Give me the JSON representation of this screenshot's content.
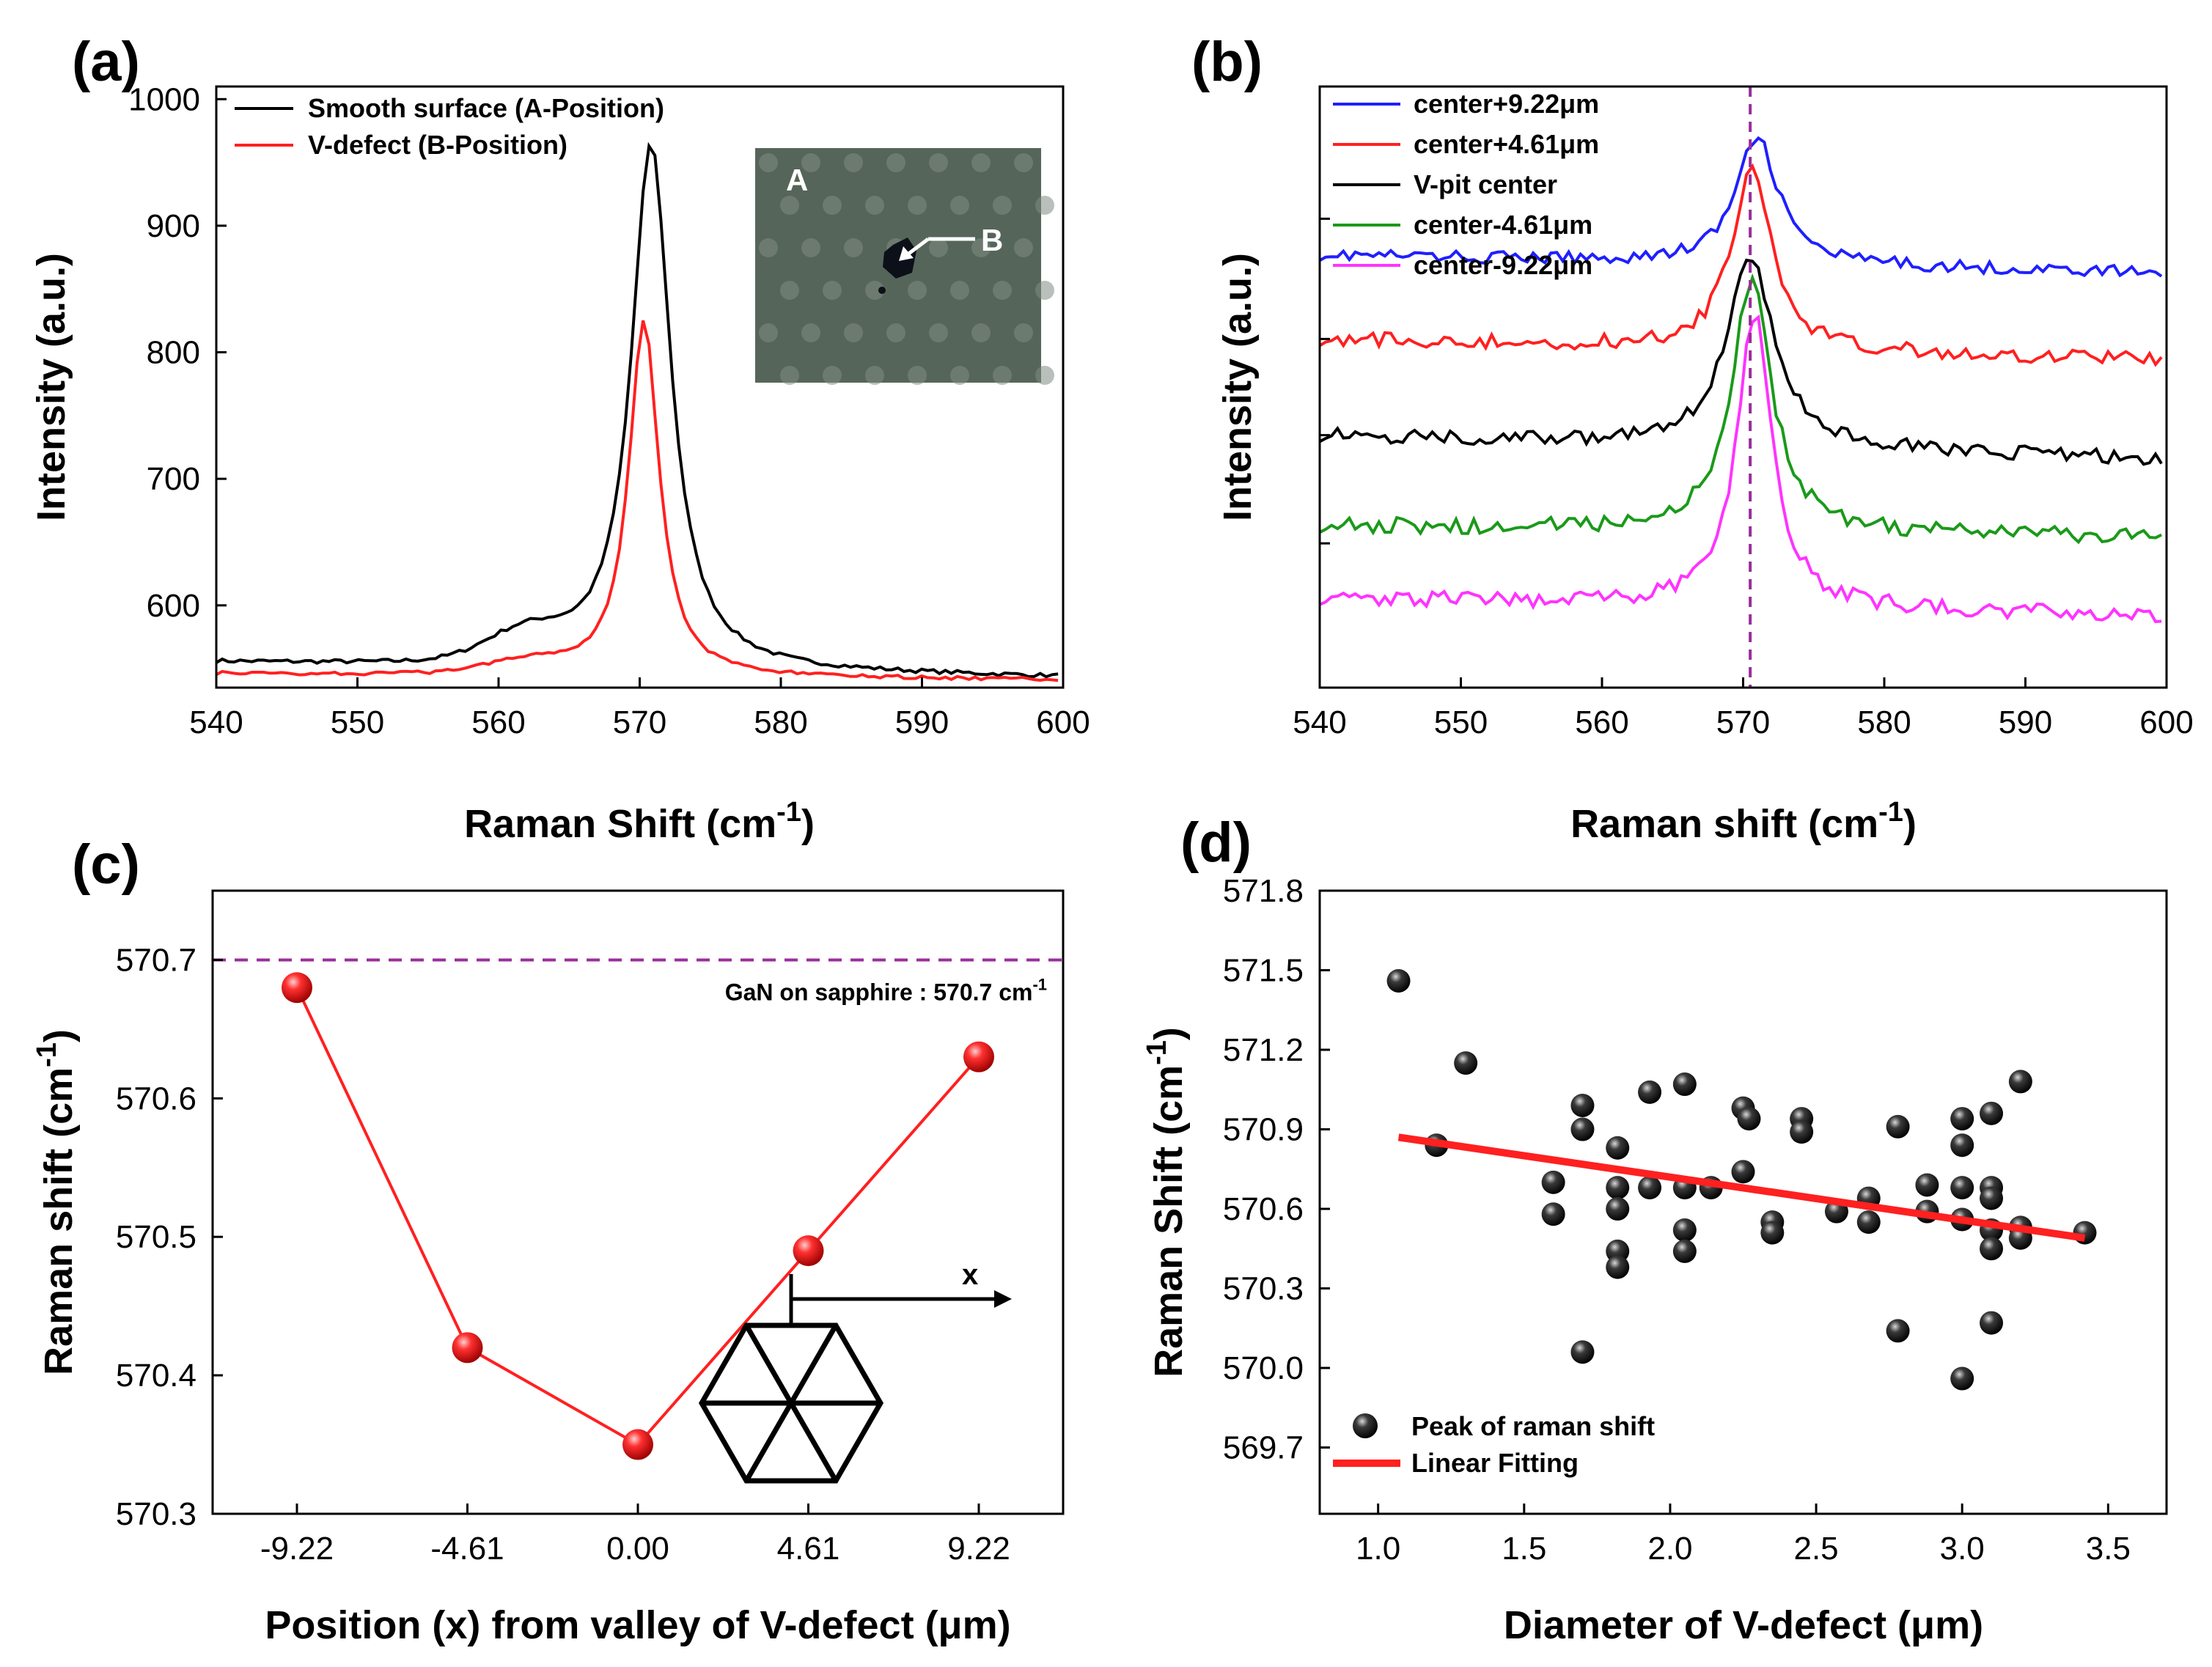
{
  "panels": {
    "a": {
      "label": "(a)"
    },
    "b": {
      "label": "(b)"
    },
    "c": {
      "label": "(c)"
    },
    "d": {
      "label": "(d)"
    }
  },
  "colors": {
    "black": "#000000",
    "red": "#ff2020",
    "blue": "#1f1fff",
    "green": "#1a9a1a",
    "magenta": "#ff33ff",
    "purple": "#9b2d9b",
    "sphere_red": "#e81010",
    "sphere_black": "#111111"
  },
  "chart_data": [
    {
      "id": "a",
      "type": "line",
      "xlabel": "Raman Shift (cm",
      "xlabel_sup": "-1",
      "xlabel_tail": ")",
      "ylabel": "Intensity (a.u.)",
      "xlim": [
        540,
        600
      ],
      "ylim": [
        535,
        1010
      ],
      "xticks": [
        540,
        550,
        560,
        570,
        580,
        590,
        600
      ],
      "yticks": [
        600,
        700,
        800,
        900,
        1000
      ],
      "series": [
        {
          "name": "Smooth surface (A-Position)",
          "color": "#000000",
          "base_left": 555,
          "base_right": 543,
          "peak_x": 570.8,
          "peak_y": 972,
          "hwhm": 1.7,
          "shoulder_y": 22,
          "noise": 1.6
        },
        {
          "name": "V-defect (B-Position)",
          "color": "#ff2020",
          "base_left": 546,
          "base_right": 541,
          "peak_x": 570.3,
          "peak_y": 828,
          "hwhm": 1.3,
          "shoulder_y": 10,
          "noise": 1.3
        }
      ],
      "inset": {
        "label_a": "A",
        "label_b": "B"
      }
    },
    {
      "id": "b",
      "type": "line",
      "xlabel": "Raman shift (cm",
      "xlabel_sup": "-1",
      "xlabel_tail": ")",
      "ylabel": "Intensity (a.u.)",
      "xlim": [
        540,
        600
      ],
      "ylim": [
        0,
        100
      ],
      "xticks": [
        540,
        550,
        560,
        570,
        580,
        590,
        600
      ],
      "reference_line_x": 570.5,
      "series": [
        {
          "name": "center+9.22μm",
          "color": "#1f1fff",
          "base_left": 72,
          "base_right": 69,
          "peak_x": 571,
          "peak_y": 93,
          "hwhm": 1.8,
          "noise": 1.0
        },
        {
          "name": "center+4.61μm",
          "color": "#ff2020",
          "base_left": 58,
          "base_right": 54.5,
          "peak_x": 570.6,
          "peak_y": 88,
          "hwhm": 1.7,
          "noise": 1.2
        },
        {
          "name": "V-pit center",
          "color": "#000000",
          "base_left": 42,
          "base_right": 38,
          "peak_x": 570.5,
          "peak_y": 74,
          "hwhm": 2.0,
          "noise": 1.2
        },
        {
          "name": "center-4.61μm",
          "color": "#1a9a1a",
          "base_left": 27,
          "base_right": 25,
          "peak_x": 570.6,
          "peak_y": 69,
          "hwhm": 1.7,
          "noise": 1.3
        },
        {
          "name": "center-9.22μm",
          "color": "#ff33ff",
          "base_left": 15,
          "base_right": 12,
          "peak_x": 570.8,
          "peak_y": 64,
          "hwhm": 1.5,
          "noise": 1.3
        }
      ]
    },
    {
      "id": "c",
      "type": "line",
      "xlabel": "Position (x) from valley of V-defect (μm)",
      "ylabel": "Raman shift (cm",
      "ylabel_sup": "-1",
      "ylabel_tail": ")",
      "xlim": [
        -11.5,
        11.5
      ],
      "ylim": [
        570.3,
        570.75
      ],
      "xticks": [
        -9.22,
        -4.61,
        0.0,
        4.61,
        9.22
      ],
      "xtick_labels": [
        "-9.22",
        "-4.61",
        "0.00",
        "4.61",
        "9.22"
      ],
      "yticks": [
        570.3,
        570.4,
        570.5,
        570.6,
        570.7
      ],
      "ytick_labels": [
        "570.3",
        "570.4",
        "570.5",
        "570.6",
        "570.7"
      ],
      "x": [
        -9.22,
        -4.61,
        0.0,
        4.61,
        9.22
      ],
      "y": [
        570.68,
        570.42,
        570.35,
        570.49,
        570.63
      ],
      "reference": {
        "y": 570.7,
        "label": "GaN on sapphire : 570.7 cm",
        "label_sup": "-1"
      },
      "schematic_label": "x"
    },
    {
      "id": "d",
      "type": "scatter",
      "xlabel": "Diameter of V-defect (μm)",
      "ylabel": "Raman Shift (cm",
      "ylabel_sup": "-1",
      "ylabel_tail": ")",
      "xlim": [
        0.8,
        3.7
      ],
      "ylim": [
        569.45,
        571.8
      ],
      "xticks": [
        1.0,
        1.5,
        2.0,
        2.5,
        3.0,
        3.5
      ],
      "xtick_labels": [
        "1.0",
        "1.5",
        "2.0",
        "2.5",
        "3.0",
        "3.5"
      ],
      "yticks": [
        569.7,
        570.0,
        570.3,
        570.6,
        570.9,
        571.2,
        571.5,
        571.8
      ],
      "ytick_labels": [
        "569.7",
        "570.0",
        "570.3",
        "570.6",
        "570.9",
        "571.2",
        "571.5",
        "571.8"
      ],
      "points": [
        [
          1.07,
          571.46
        ],
        [
          1.2,
          570.84
        ],
        [
          1.3,
          571.15
        ],
        [
          1.6,
          570.7
        ],
        [
          1.6,
          570.58
        ],
        [
          1.7,
          570.99
        ],
        [
          1.7,
          570.9
        ],
        [
          1.7,
          570.06
        ],
        [
          1.82,
          570.83
        ],
        [
          1.82,
          570.68
        ],
        [
          1.82,
          570.6
        ],
        [
          1.82,
          570.44
        ],
        [
          1.82,
          570.38
        ],
        [
          1.93,
          571.04
        ],
        [
          1.93,
          570.68
        ],
        [
          2.05,
          571.07
        ],
        [
          2.05,
          570.68
        ],
        [
          2.05,
          570.52
        ],
        [
          2.05,
          570.44
        ],
        [
          2.14,
          570.68
        ],
        [
          2.25,
          570.98
        ],
        [
          2.27,
          570.94
        ],
        [
          2.25,
          570.74
        ],
        [
          2.35,
          570.55
        ],
        [
          2.35,
          570.51
        ],
        [
          2.45,
          570.94
        ],
        [
          2.45,
          570.89
        ],
        [
          2.57,
          570.59
        ],
        [
          2.68,
          570.64
        ],
        [
          2.68,
          570.55
        ],
        [
          2.78,
          570.91
        ],
        [
          2.78,
          570.14
        ],
        [
          2.88,
          570.69
        ],
        [
          2.88,
          570.59
        ],
        [
          3.0,
          570.94
        ],
        [
          3.0,
          570.84
        ],
        [
          3.0,
          570.68
        ],
        [
          3.0,
          570.56
        ],
        [
          3.0,
          569.96
        ],
        [
          3.1,
          570.96
        ],
        [
          3.1,
          570.68
        ],
        [
          3.1,
          570.64
        ],
        [
          3.1,
          570.52
        ],
        [
          3.1,
          570.45
        ],
        [
          3.1,
          570.17
        ],
        [
          3.2,
          571.08
        ],
        [
          3.2,
          570.53
        ],
        [
          3.2,
          570.49
        ],
        [
          3.42,
          570.51
        ]
      ],
      "fit": {
        "x": [
          1.07,
          3.42
        ],
        "y": [
          570.87,
          570.49
        ]
      },
      "legend": [
        "Peak of raman shift",
        "Linear Fitting"
      ]
    }
  ]
}
